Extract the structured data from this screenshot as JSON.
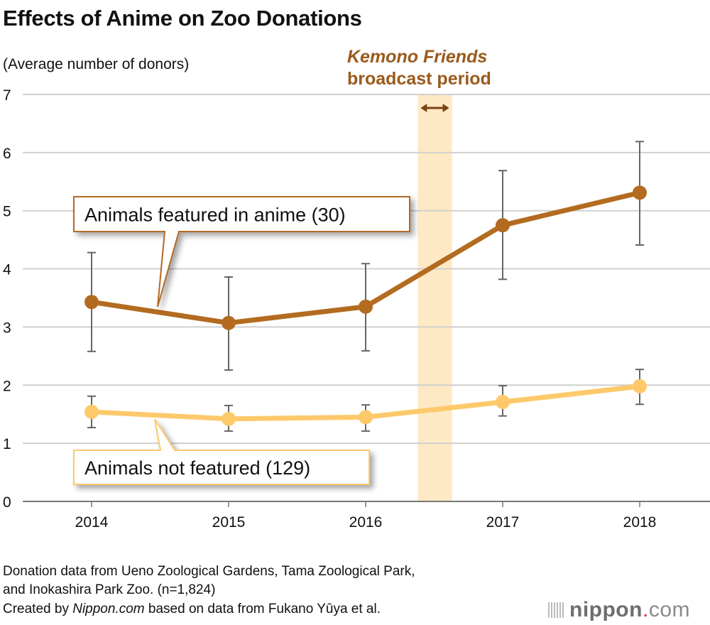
{
  "chart_data": {
    "type": "line",
    "title": "Effects of Anime on Zoo Donations",
    "ylabel": "(Average number of donors)",
    "xlabel": "",
    "categories": [
      "2014",
      "2015",
      "2016",
      "2017",
      "2018"
    ],
    "x": [
      2014,
      2015,
      2016,
      2017,
      2018
    ],
    "ylim": [
      0,
      7
    ],
    "yticks": [
      "0",
      "1",
      "2",
      "3",
      "4",
      "5",
      "6",
      "7"
    ],
    "grid": true,
    "series": [
      {
        "name": "Animals featured in anime (30)",
        "color": "#b36b20",
        "values": [
          3.43,
          3.07,
          3.35,
          4.75,
          5.31
        ],
        "error_low": [
          2.58,
          2.26,
          2.59,
          3.82,
          4.41
        ],
        "error_high": [
          4.28,
          3.86,
          4.09,
          5.69,
          6.19
        ]
      },
      {
        "name": "Animals not featured (129)",
        "color": "#fdc96b",
        "values": [
          1.54,
          1.42,
          1.45,
          1.71,
          1.98
        ],
        "error_low": [
          1.27,
          1.21,
          1.21,
          1.47,
          1.67
        ],
        "error_high": [
          1.81,
          1.65,
          1.66,
          1.99,
          2.27
        ]
      }
    ],
    "annotation": {
      "title": "Kemono Friends",
      "subtitle": "broadcast period",
      "x_range": [
        2016.38,
        2016.63
      ],
      "color": "#ffe9c4",
      "text_color": "#9a5a1c"
    }
  },
  "footer": {
    "line1": "Donation data from Ueno Zoological Gardens, Tama Zoological Park,",
    "line2": "and Inokashira Park Zoo. (n=1,824)",
    "line3_a": "Created by ",
    "line3_b": "Nippon.com",
    "line3_c": " based on data from Fukano Yūya et al."
  },
  "logo": {
    "text": "nippon",
    "dot": ".",
    "suffix": "com"
  }
}
